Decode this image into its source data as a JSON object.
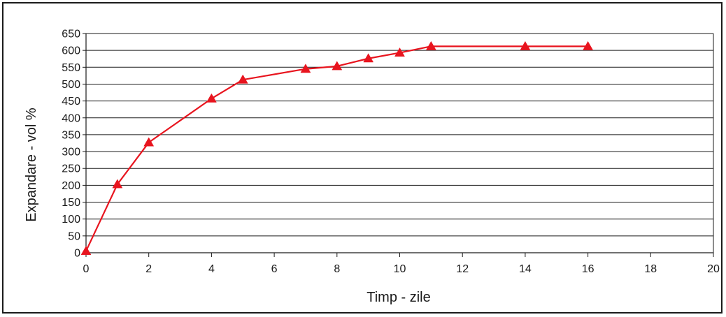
{
  "chart_data": {
    "type": "line",
    "title": "",
    "xlabel": "Timp - zile",
    "ylabel": "Expandare - vol %",
    "xlim": [
      0,
      20
    ],
    "ylim": [
      0,
      650
    ],
    "x_ticks": [
      0,
      2,
      4,
      6,
      8,
      10,
      12,
      14,
      16,
      18,
      20
    ],
    "y_ticks": [
      0,
      50,
      100,
      150,
      200,
      250,
      300,
      350,
      400,
      450,
      500,
      550,
      600,
      650
    ],
    "grid": "horizontal",
    "legend": "none",
    "series": [
      {
        "color": "#e8141e",
        "marker": "triangle",
        "x": [
          0,
          1,
          2,
          4,
          5,
          7,
          8,
          9,
          10,
          11,
          14,
          16
        ],
        "y": [
          5,
          203,
          327,
          457,
          513,
          545,
          553,
          576,
          593,
          612,
          612,
          612
        ]
      }
    ]
  }
}
